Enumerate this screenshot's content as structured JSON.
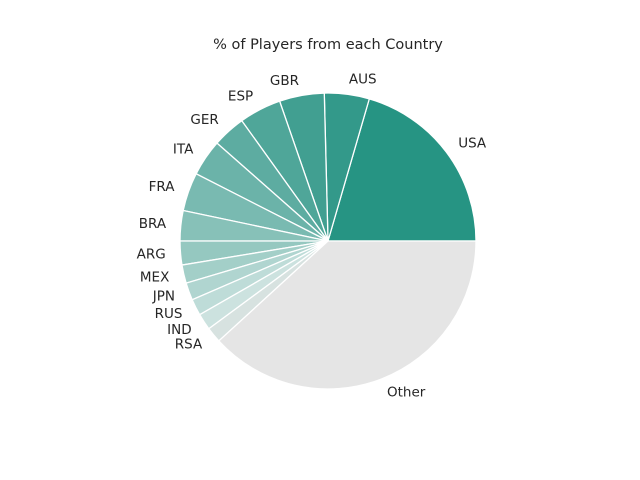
{
  "chart_data": {
    "type": "pie",
    "title": "% of Players from each Country",
    "start_angle_deg": 0,
    "direction": "counterclockwise",
    "labels": [
      "USA",
      "AUS",
      "GBR",
      "ESP",
      "GER",
      "ITA",
      "FRA",
      "BRA",
      "ARG",
      "MEX",
      "JPN",
      "RUS",
      "IND",
      "RSA",
      "Other"
    ],
    "values": [
      20.5,
      4.9,
      4.9,
      4.6,
      3.6,
      4.0,
      4.2,
      3.3,
      2.6,
      2.0,
      1.9,
      1.8,
      1.8,
      1.7,
      38.2
    ],
    "colors": [
      "#269483",
      "#33998a",
      "#419f91",
      "#4fa699",
      "#5daca1",
      "#6bb3a9",
      "#79bab1",
      "#87c1b8",
      "#95c8c0",
      "#a3cfc8",
      "#b0d5d0",
      "#bedcd8",
      "#cce2df",
      "#d7e2e0",
      "#e5e5e5"
    ]
  }
}
